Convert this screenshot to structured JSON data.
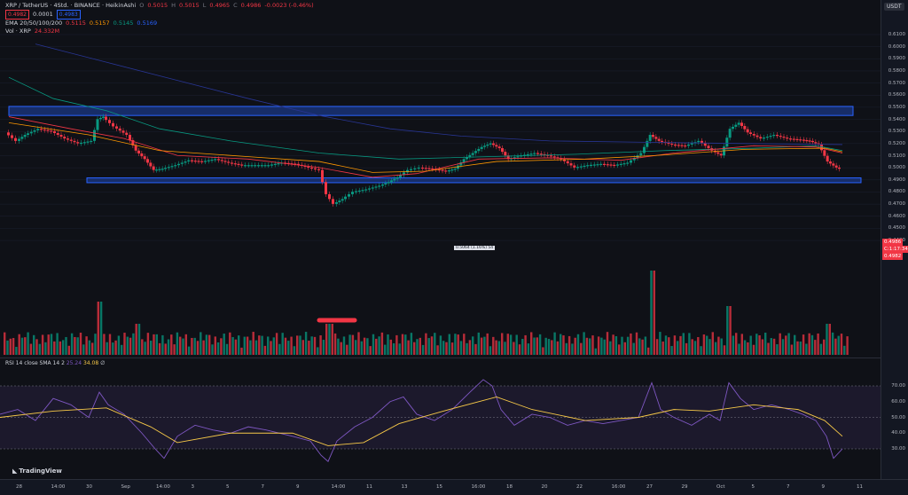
{
  "legend": {
    "symbol": "XRP / TetherUS · 4Std. · BINANCE · HeikinAshi",
    "ohlc": {
      "o_label": "O",
      "o": "0.5015",
      "h_label": "H",
      "h": "0.5015",
      "l_label": "L",
      "l": "0.4965",
      "c_label": "C",
      "c": "0.4986",
      "chg": "-0.0023 (-0.46%)"
    },
    "bid": "0.4982",
    "spread": "0.0001",
    "ask": "0.4983",
    "ema_label": "EMA 20/50/100/200",
    "ema_values": [
      "0.5115",
      "0.5157",
      "0.5145",
      "0.5169"
    ],
    "vol_label": "Vol · XRP",
    "vol_value": "24.332M",
    "usdt": "USDT"
  },
  "rsi": {
    "label": "RSI 14 close SMA 14 2",
    "rsi_value": "25.24",
    "sma_value": "34.08",
    "extra": "∅"
  },
  "price_ticks": [
    "0.6100",
    "0.6000",
    "0.5900",
    "0.5800",
    "0.5700",
    "0.5600",
    "0.5500",
    "0.5400",
    "0.5300",
    "0.5200",
    "0.5100",
    "0.5000",
    "0.4900",
    "0.4800",
    "0.4700",
    "0.4600",
    "0.4500",
    "0.4400"
  ],
  "rsi_ticks": [
    "70.00",
    "60.00",
    "50.00",
    "40.00",
    "30.00"
  ],
  "time_ticks": [
    "28",
    "14:00",
    "30",
    "Sep",
    "14:00",
    "3",
    "5",
    "7",
    "9",
    "14:00",
    "11",
    "13",
    "15",
    "16:00",
    "18",
    "20",
    "22",
    "16:00",
    "27",
    "29",
    "Oct",
    "5",
    "7",
    "9",
    "11"
  ],
  "current_price": {
    "price": "0.4986",
    "countdown": "C:1:17:34",
    "ask": "0.4982"
  },
  "measure": "0.5064 (1.16%) 54",
  "brand": "TradingView",
  "colors": {
    "up": "#089981",
    "down": "#f23645",
    "zone": "#2962ff",
    "rsi": "#7e57c2",
    "rsi_sma": "#f7c948"
  },
  "chart_data": {
    "type": "candlestick",
    "symbol": "XRP / TetherUS",
    "timeframe": "4Std.",
    "exchange": "BINANCE",
    "style": "HeikinAshi",
    "ylim": [
      0.44,
      0.61
    ],
    "resistance_zone": [
      0.541,
      0.5485
    ],
    "support_zone": [
      0.4855,
      0.4895
    ],
    "last_close": 0.4986,
    "ema": [
      {
        "name": "EMA 20",
        "value": 0.5115
      },
      {
        "name": "EMA 50",
        "value": 0.5157
      },
      {
        "name": "EMA 100",
        "value": 0.5145
      },
      {
        "name": "EMA 200",
        "value": 0.5169
      }
    ],
    "rsi": {
      "last": 25.24,
      "sma_last": 34.08,
      "levels": [
        70,
        50,
        30
      ]
    }
  }
}
